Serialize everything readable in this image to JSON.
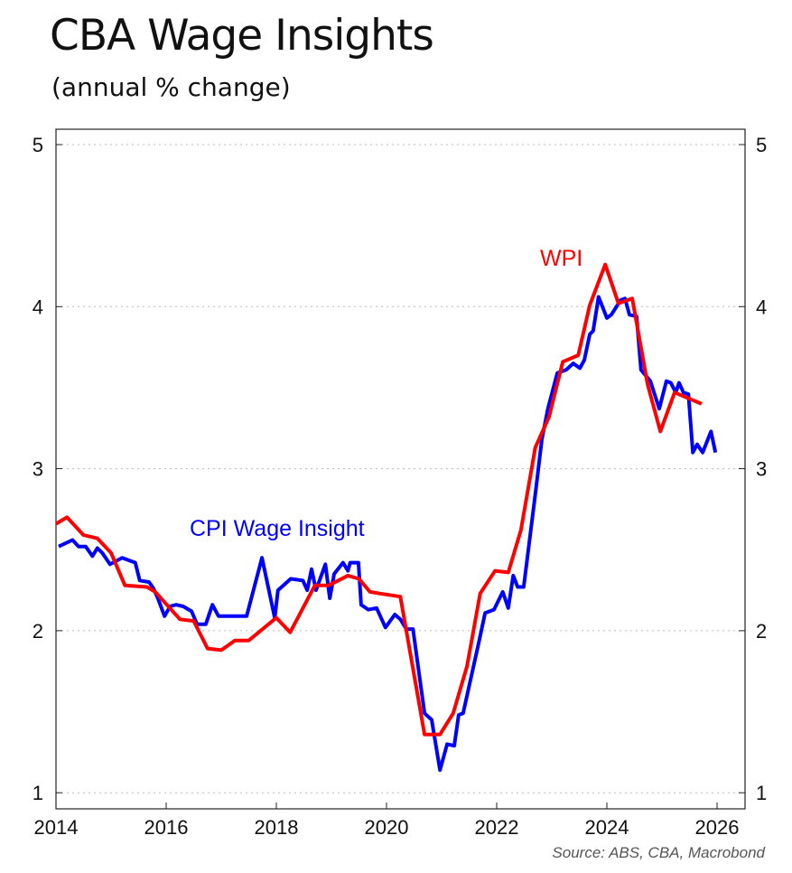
{
  "chart_data": {
    "type": "line",
    "title": "CBA Wage Insights",
    "subtitle": "(annual % change)",
    "source": "Source: ABS, CBA, Macrobond",
    "xlim": [
      2014,
      2026.5
    ],
    "ylim": [
      1,
      5
    ],
    "x_ticks": [
      "2014",
      "2016",
      "2018",
      "2020",
      "2022",
      "2024",
      "2026"
    ],
    "y_ticks": [
      "1",
      "2",
      "3",
      "4",
      "5"
    ],
    "grid": true,
    "series": [
      {
        "name": "CPI Wage Insight",
        "color": "#0000ff",
        "x": [
          2014.05,
          2014.3,
          2014.41,
          2014.54,
          2014.66,
          2014.75,
          2014.84,
          2014.98,
          2015.2,
          2015.44,
          2015.52,
          2015.69,
          2015.77,
          2015.85,
          2015.97,
          2016.07,
          2016.18,
          2016.31,
          2016.46,
          2016.56,
          2016.72,
          2016.84,
          2016.95,
          2017.46,
          2017.74,
          2017.97,
          2018.03,
          2018.26,
          2018.48,
          2018.56,
          2018.64,
          2018.72,
          2018.89,
          2018.97,
          2019.05,
          2019.21,
          2019.3,
          2019.34,
          2019.49,
          2019.54,
          2019.67,
          2019.82,
          2019.98,
          2020.15,
          2020.25,
          2020.36,
          2020.48,
          2020.69,
          2020.82,
          2020.97,
          2021.1,
          2021.23,
          2021.31,
          2021.39,
          2021.67,
          2021.79,
          2021.95,
          2022.11,
          2022.21,
          2022.3,
          2022.38,
          2022.49,
          2022.7,
          2022.82,
          2022.93,
          2023.1,
          2023.26,
          2023.39,
          2023.51,
          2023.59,
          2023.69,
          2023.75,
          2023.85,
          2024.0,
          2024.08,
          2024.25,
          2024.33,
          2024.41,
          2024.54,
          2024.62,
          2024.79,
          2024.95,
          2025.08,
          2025.16,
          2025.25,
          2025.31,
          2025.39,
          2025.48,
          2025.56,
          2025.64,
          2025.74,
          2025.89,
          2025.97
        ],
        "y": [
          2.52,
          2.56,
          2.52,
          2.52,
          2.46,
          2.51,
          2.48,
          2.41,
          2.45,
          2.42,
          2.31,
          2.3,
          2.26,
          2.2,
          2.09,
          2.15,
          2.16,
          2.15,
          2.12,
          2.04,
          2.04,
          2.16,
          2.09,
          2.09,
          2.45,
          2.08,
          2.25,
          2.32,
          2.31,
          2.25,
          2.38,
          2.25,
          2.41,
          2.2,
          2.35,
          2.42,
          2.37,
          2.42,
          2.42,
          2.16,
          2.13,
          2.14,
          2.02,
          2.1,
          2.07,
          2.01,
          2.01,
          1.49,
          1.45,
          1.14,
          1.3,
          1.29,
          1.48,
          1.49,
          1.92,
          2.11,
          2.13,
          2.24,
          2.14,
          2.34,
          2.27,
          2.27,
          2.84,
          3.18,
          3.37,
          3.59,
          3.61,
          3.65,
          3.62,
          3.67,
          3.83,
          3.85,
          4.06,
          3.93,
          3.95,
          4.04,
          4.05,
          3.95,
          3.94,
          3.61,
          3.54,
          3.37,
          3.54,
          3.53,
          3.47,
          3.53,
          3.47,
          3.46,
          3.1,
          3.15,
          3.1,
          3.23,
          3.1
        ]
      },
      {
        "name": "WPI",
        "color": "#ff0000",
        "x": [
          2014.0,
          2014.2,
          2014.5,
          2014.75,
          2015.0,
          2015.25,
          2015.65,
          2015.8,
          2016.25,
          2016.5,
          2016.75,
          2017.0,
          2017.25,
          2017.5,
          2018.0,
          2018.25,
          2018.7,
          2018.95,
          2019.3,
          2019.5,
          2019.7,
          2019.87,
          2020.25,
          2020.69,
          2020.97,
          2021.21,
          2021.46,
          2021.7,
          2021.97,
          2022.21,
          2022.44,
          2022.7,
          2022.95,
          2023.2,
          2023.48,
          2023.69,
          2023.97,
          2024.21,
          2024.46,
          2024.74,
          2024.97,
          2025.23,
          2025.72
        ],
        "y": [
          2.66,
          2.7,
          2.59,
          2.57,
          2.48,
          2.28,
          2.27,
          2.24,
          2.07,
          2.06,
          1.89,
          1.88,
          1.94,
          1.94,
          2.08,
          1.99,
          2.28,
          2.28,
          2.34,
          2.32,
          2.24,
          2.23,
          2.21,
          1.36,
          1.36,
          1.49,
          1.78,
          2.23,
          2.37,
          2.36,
          2.62,
          3.13,
          3.32,
          3.66,
          3.7,
          4.01,
          4.26,
          4.02,
          4.05,
          3.52,
          3.23,
          3.47,
          3.4
        ]
      }
    ]
  }
}
